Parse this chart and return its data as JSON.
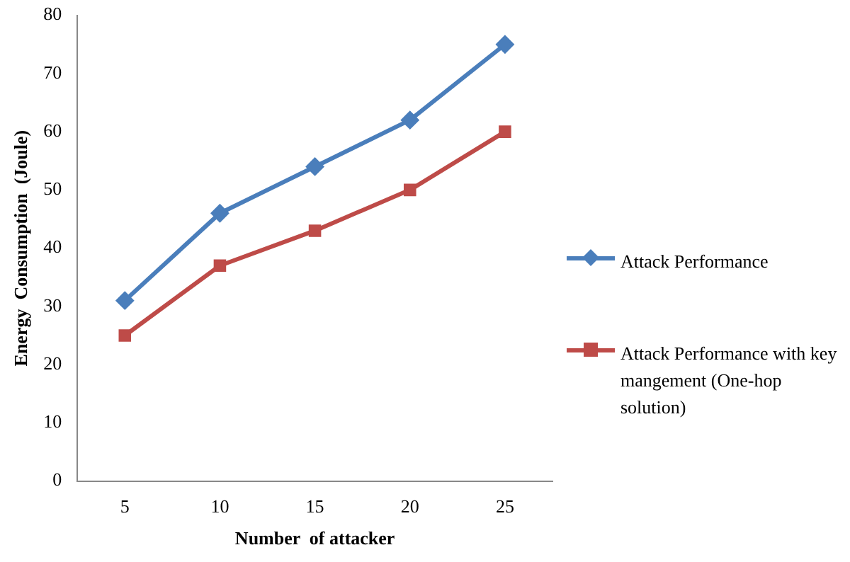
{
  "chart_data": {
    "type": "line",
    "xlabel": "Number  of attacker",
    "ylabel": "Energy  Consumption  (Joule)",
    "categories": [
      "5",
      "10",
      "15",
      "20",
      "25"
    ],
    "series": [
      {
        "name": "Attack Performance",
        "color": "#4a7ebb",
        "marker": "diamond",
        "values": [
          31,
          46,
          54,
          62,
          75
        ]
      },
      {
        "name": "Attack Performance with key mangement (One-hop solution)",
        "color": "#be4b48",
        "marker": "square",
        "values": [
          25,
          37,
          43,
          50,
          60
        ]
      }
    ],
    "ylim": [
      0,
      80
    ],
    "yticks": [
      0,
      10,
      20,
      30,
      40,
      50,
      60,
      70,
      80
    ],
    "grid": false,
    "legend": "right",
    "line_style": "solid"
  }
}
